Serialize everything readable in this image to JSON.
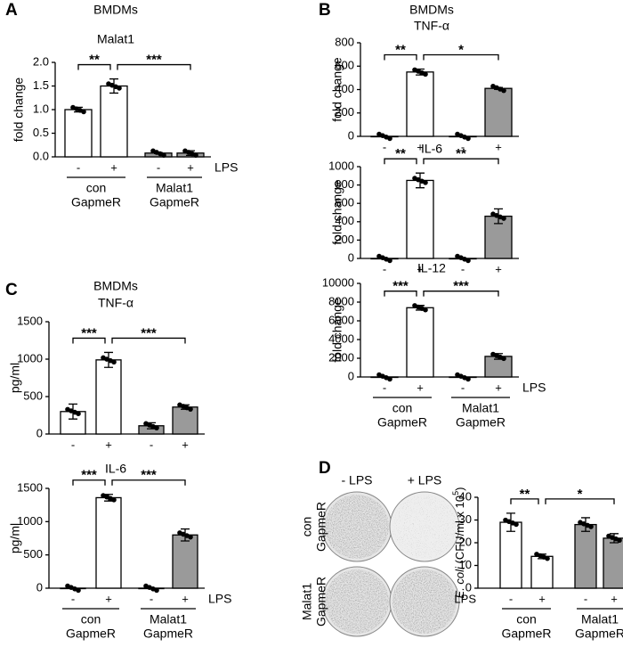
{
  "panels": [
    "A",
    "B",
    "C",
    "D"
  ],
  "plates": {
    "columns": [
      "- LPS",
      "+ LPS"
    ],
    "rows": [
      [
        "con",
        "GapmeR"
      ],
      [
        "Malat1",
        "GapmeR"
      ]
    ]
  },
  "chart_data": [
    {
      "type": "bar",
      "header": "BMDMs",
      "title": "Malat1",
      "ylabel": "fold change",
      "categories": [
        "-",
        "+",
        "-",
        "+"
      ],
      "values": [
        1.0,
        1.5,
        0.08,
        0.08
      ],
      "errors": [
        0.05,
        0.15,
        0.01,
        0.05
      ],
      "colors": [
        "#ffffff",
        "#ffffff",
        "#9a9a9a",
        "#9a9a9a"
      ],
      "ylim": [
        0,
        2.0
      ],
      "yticks": [
        {
          "value": 0,
          "label": "0.0"
        },
        {
          "value": 0.5,
          "label": "0.5"
        },
        {
          "value": 1.0,
          "label": "1.0"
        },
        {
          "value": 1.5,
          "label": "1.5"
        },
        {
          "value": 2.0,
          "label": "2.0"
        }
      ],
      "significance": [
        "**",
        "***"
      ],
      "groups": [
        [
          "con",
          "GapmeR"
        ],
        [
          "Malat1",
          "GapmeR"
        ]
      ],
      "lps_label": "LPS"
    },
    {
      "type": "bar",
      "header": "BMDMs",
      "title": "TNF-α",
      "ylabel": "fold change",
      "categories": [
        "-",
        "+",
        "-",
        "+"
      ],
      "values": [
        0,
        550,
        0,
        410
      ],
      "errors": [
        0,
        25,
        0,
        8
      ],
      "colors": [
        "#ffffff",
        "#ffffff",
        "#9a9a9a",
        "#9a9a9a"
      ],
      "ylim": [
        0,
        800
      ],
      "yticks": [
        0,
        200,
        400,
        600,
        800
      ],
      "significance": [
        "**",
        "*"
      ]
    },
    {
      "type": "bar",
      "title": "IL-6",
      "ylabel": "fold change",
      "categories": [
        "-",
        "+",
        "-",
        "+"
      ],
      "values": [
        0,
        850,
        0,
        460
      ],
      "errors": [
        0,
        80,
        0,
        80
      ],
      "colors": [
        "#ffffff",
        "#ffffff",
        "#9a9a9a",
        "#9a9a9a"
      ],
      "ylim": [
        0,
        1000
      ],
      "yticks": [
        0,
        200,
        400,
        600,
        800,
        1000
      ],
      "significance": [
        "**",
        "**"
      ]
    },
    {
      "type": "bar",
      "title": "IL-12",
      "ylabel": "fold change",
      "categories": [
        "-",
        "+",
        "-",
        "+"
      ],
      "values": [
        0,
        7400,
        0,
        2200
      ],
      "errors": [
        0,
        250,
        0,
        300
      ],
      "colors": [
        "#ffffff",
        "#ffffff",
        "#9a9a9a",
        "#9a9a9a"
      ],
      "ylim": [
        0,
        10000
      ],
      "yticks": [
        0,
        2000,
        4000,
        6000,
        8000,
        10000
      ],
      "significance": [
        "***",
        "***"
      ],
      "groups": [
        [
          "con",
          "GapmeR"
        ],
        [
          "Malat1",
          "GapmeR"
        ]
      ],
      "lps_label": "LPS"
    },
    {
      "type": "bar",
      "header": "BMDMs",
      "title": "TNF-α",
      "ylabel": "pg/ml",
      "categories": [
        "-",
        "+",
        "-",
        "+"
      ],
      "values": [
        300,
        990,
        110,
        360
      ],
      "errors": [
        100,
        100,
        40,
        30
      ],
      "colors": [
        "#ffffff",
        "#ffffff",
        "#9a9a9a",
        "#9a9a9a"
      ],
      "ylim": [
        0,
        1500
      ],
      "yticks": [
        0,
        500,
        1000,
        1500
      ],
      "significance": [
        "***",
        "***"
      ]
    },
    {
      "type": "bar",
      "title": "IL-6",
      "ylabel": "pg/ml",
      "categories": [
        "-",
        "+",
        "-",
        "+"
      ],
      "values": [
        0,
        1360,
        0,
        800
      ],
      "errors": [
        0,
        50,
        0,
        90
      ],
      "colors": [
        "#ffffff",
        "#ffffff",
        "#9a9a9a",
        "#9a9a9a"
      ],
      "ylim": [
        0,
        1500
      ],
      "yticks": [
        0,
        500,
        1000,
        1500
      ],
      "significance": [
        "***",
        "***"
      ],
      "groups": [
        [
          "con",
          "GapmeR"
        ],
        [
          "Malat1",
          "GapmeR"
        ]
      ],
      "lps_label": "LPS"
    },
    {
      "type": "bar",
      "ylabel": [
        "E. coli",
        " (CFU/ml x 10",
        "5",
        ")"
      ],
      "categories": [
        "-",
        "+",
        "-",
        "+"
      ],
      "values": [
        29,
        14,
        28,
        22
      ],
      "errors": [
        4,
        1,
        3,
        2
      ],
      "colors": [
        "#ffffff",
        "#ffffff",
        "#9a9a9a",
        "#9a9a9a"
      ],
      "ylim": [
        0,
        40
      ],
      "yticks": [
        0,
        10,
        20,
        30,
        40
      ],
      "significance": [
        "**",
        "*"
      ],
      "groups": [
        [
          "con",
          "GapmeR"
        ],
        [
          "Malat1",
          "GapmeR"
        ]
      ],
      "lps_label": "LPS"
    }
  ]
}
